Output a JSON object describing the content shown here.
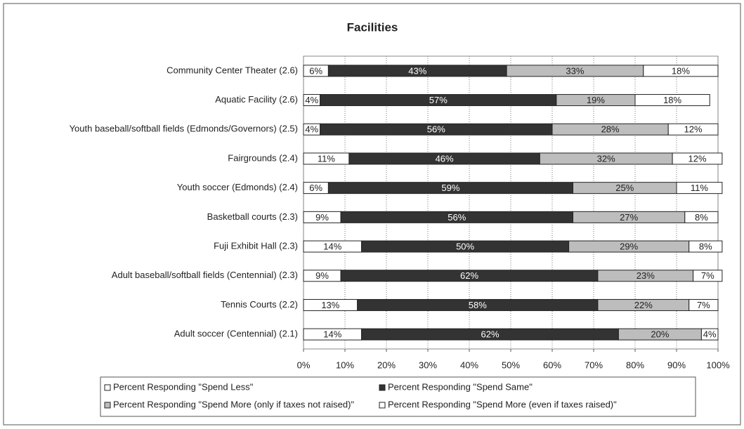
{
  "chart_data": {
    "type": "stacked-bar-horizontal",
    "title": "Facilities",
    "categories": [
      "Community Center Theater (2.6)",
      "Aquatic Facility (2.6)",
      "Youth baseball/softball fields (Edmonds/Governors) (2.5)",
      "Fairgrounds (2.4)",
      "Youth soccer (Edmonds) (2.4)",
      "Basketball courts (2.3)",
      "Fuji Exhibit Hall (2.3)",
      "Adult baseball/softball fields (Centennial) (2.3)",
      "Tennis Courts (2.2)",
      "Adult soccer (Centennial) (2.1)"
    ],
    "series": [
      {
        "name": "Percent Responding \"Spend Less\"",
        "color": "#ffffff",
        "values": [
          6,
          4,
          4,
          11,
          6,
          9,
          14,
          9,
          13,
          14
        ],
        "value_labels": [
          "6%",
          "4%",
          "4%",
          "11%",
          "6%",
          "9%",
          "14%",
          "9%",
          "13%",
          "14%"
        ]
      },
      {
        "name": "Percent Responding \"Spend Same\"",
        "color": "#333333",
        "values": [
          43,
          57,
          56,
          46,
          59,
          56,
          50,
          62,
          58,
          62
        ],
        "value_labels": [
          "43%",
          "57%",
          "56%",
          "46%",
          "59%",
          "56%",
          "50%",
          "62%",
          "58%",
          "62%"
        ]
      },
      {
        "name": "Percent Responding \"Spend More (only if taxes not raised)\"",
        "color": "#bdbdbd",
        "values": [
          33,
          19,
          28,
          32,
          25,
          27,
          29,
          23,
          22,
          20
        ],
        "value_labels": [
          "33%",
          "19%",
          "28%",
          "32%",
          "25%",
          "27%",
          "29%",
          "23%",
          "22%",
          "20%"
        ]
      },
      {
        "name": "Percent Responding \"Spend More (even if taxes raised)\"",
        "color": "#ffffff",
        "values": [
          18,
          18,
          12,
          12,
          11,
          8,
          8,
          7,
          7,
          4
        ],
        "value_labels": [
          "18%",
          "18%",
          "12%",
          "12%",
          "11%",
          "8%",
          "8%",
          "7%",
          "7%",
          "4%"
        ]
      }
    ],
    "xlim": [
      0,
      100
    ],
    "xticks": [
      {
        "value": 0,
        "label": "0%"
      },
      {
        "value": 10,
        "label": "10%"
      },
      {
        "value": 20,
        "label": "20%"
      },
      {
        "value": 30,
        "label": "30%"
      },
      {
        "value": 40,
        "label": "40%"
      },
      {
        "value": 50,
        "label": "50%"
      },
      {
        "value": 60,
        "label": "60%"
      },
      {
        "value": 70,
        "label": "70%"
      },
      {
        "value": 80,
        "label": "80%"
      },
      {
        "value": 90,
        "label": "90%"
      },
      {
        "value": 100,
        "label": "100%"
      }
    ],
    "grid": true
  }
}
